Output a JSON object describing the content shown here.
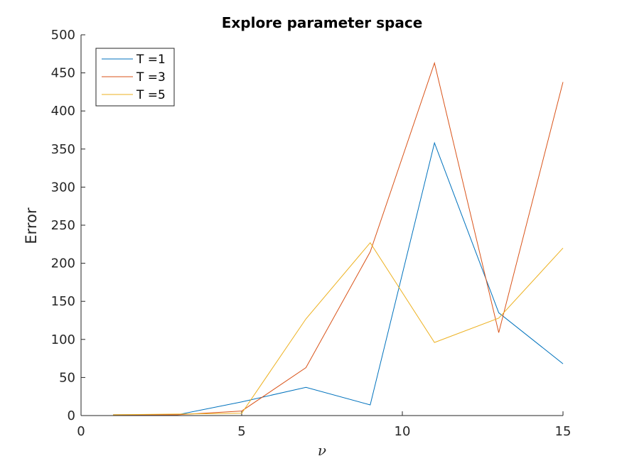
{
  "chart_data": {
    "type": "line",
    "title": "Explore parameter space",
    "xlabel": "ν",
    "ylabel": "Error",
    "xlim": [
      0,
      15
    ],
    "ylim": [
      0,
      500
    ],
    "xticks": [
      0,
      5,
      10,
      15
    ],
    "yticks": [
      0,
      50,
      100,
      150,
      200,
      250,
      300,
      350,
      400,
      450,
      500
    ],
    "grid": false,
    "legend_location": "top-left",
    "x": [
      1,
      3,
      5,
      7,
      9,
      11,
      13,
      15
    ],
    "series": [
      {
        "name": "T =1",
        "color": "#0072BD",
        "values": [
          1,
          1,
          18,
          37,
          14,
          358,
          135,
          68
        ]
      },
      {
        "name": "T =3",
        "color": "#D95319",
        "values": [
          1,
          1,
          6,
          63,
          215,
          463,
          109,
          438
        ]
      },
      {
        "name": "T =5",
        "color": "#EDB120",
        "values": [
          1,
          2,
          3,
          127,
          227,
          96,
          128,
          220
        ]
      }
    ]
  }
}
